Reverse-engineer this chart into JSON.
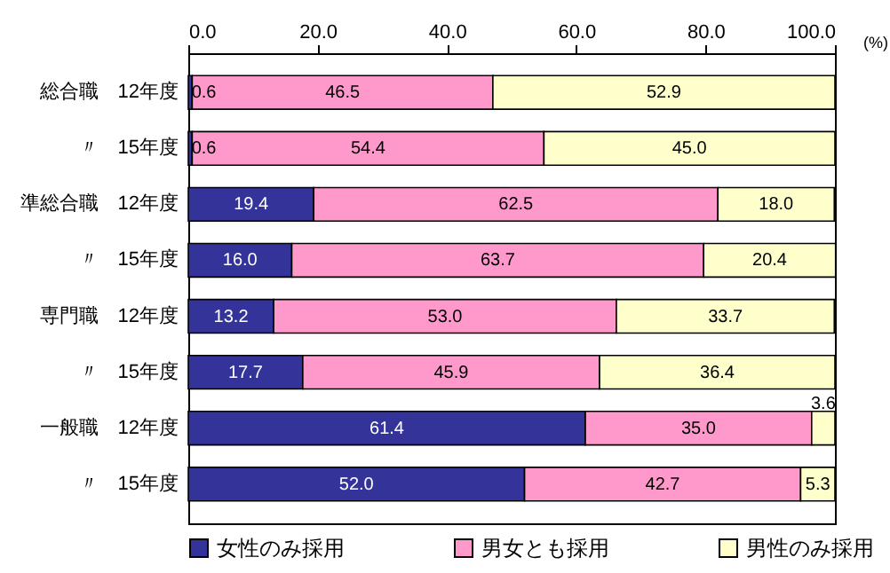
{
  "chart_data": {
    "type": "bar",
    "orientation": "horizontal",
    "stacked": true,
    "categories": [
      "総合職　12年度",
      "〃　15年度",
      "準総合職　12年度",
      "〃　15年度",
      "専門職　12年度",
      "〃　15年度",
      "一般職　12年度",
      "〃　15年度"
    ],
    "series": [
      {
        "name": "女性のみ採用",
        "color": "#333399",
        "values": [
          0.6,
          0.6,
          19.4,
          16.0,
          13.2,
          17.7,
          61.4,
          52.0
        ],
        "value_labels": [
          "0.6",
          "0.6",
          "19.4",
          "16.0",
          "13.2",
          "17.7",
          "61.4",
          "52.0"
        ]
      },
      {
        "name": "男女とも採用",
        "color": "#ff99cc",
        "values": [
          46.5,
          54.4,
          62.5,
          63.7,
          53.0,
          45.9,
          35.0,
          42.7
        ],
        "value_labels": [
          "46.5",
          "54.4",
          "62.5",
          "63.7",
          "53.0",
          "45.9",
          "35.0",
          "42.7"
        ]
      },
      {
        "name": "男性のみ採用",
        "color": "#ffffcc",
        "values": [
          52.9,
          45.0,
          18.0,
          20.4,
          33.7,
          36.4,
          3.6,
          5.3
        ],
        "value_labels": [
          "52.9",
          "45.0",
          "18.0",
          "20.4",
          "33.7",
          "36.4",
          "3.6",
          "5.3"
        ]
      }
    ],
    "xlim": [
      0,
      100
    ],
    "xticks": [
      {
        "value": 0,
        "label": "0.0"
      },
      {
        "value": 20,
        "label": "20.0"
      },
      {
        "value": 40,
        "label": "40.0"
      },
      {
        "value": 60,
        "label": "60.0"
      },
      {
        "value": 80,
        "label": "80.0"
      },
      {
        "value": 100,
        "label": "100.0"
      }
    ],
    "annotations": [
      "(%)"
    ],
    "legend": "bottom",
    "grid": false
  }
}
